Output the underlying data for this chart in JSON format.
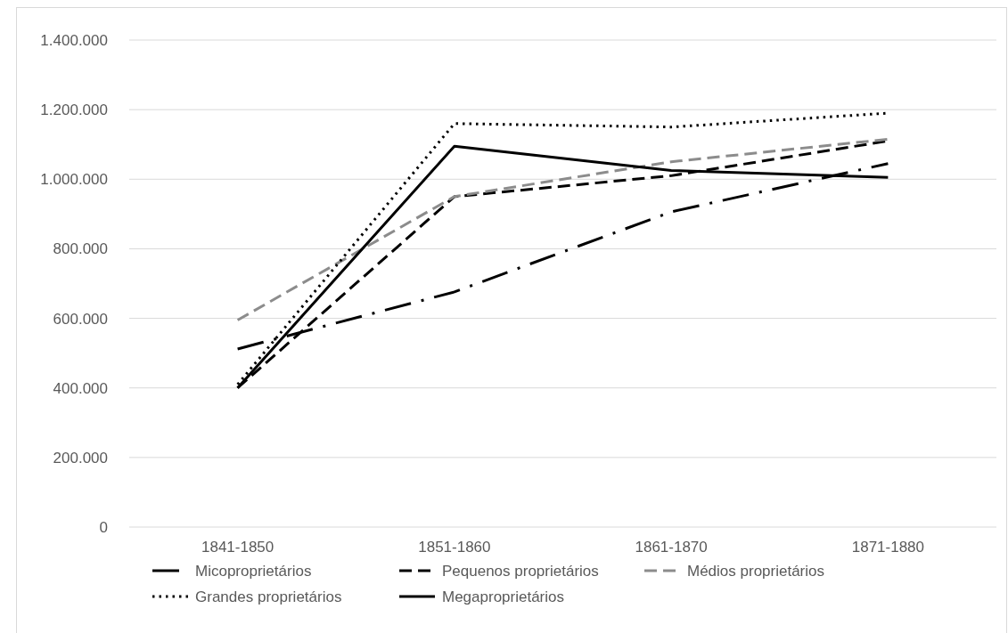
{
  "chart_data": {
    "type": "line",
    "categories": [
      "1841-1850",
      "1851-1860",
      "1861-1870",
      "1871-1880"
    ],
    "series": [
      {
        "name": "Micoproprietários",
        "color": "#000000",
        "line_style": "dashdot",
        "values": [
          512000,
          676000,
          906000,
          1045000
        ]
      },
      {
        "name": "Pequenos proprietários",
        "color": "#000000",
        "line_style": "dashed",
        "values": [
          400000,
          950000,
          1010000,
          1110000
        ]
      },
      {
        "name": "Médios proprietários",
        "color": "#8c8c8c",
        "line_style": "dashed",
        "values": [
          595000,
          950000,
          1050000,
          1115000
        ]
      },
      {
        "name": "Grandes proprietários",
        "color": "#000000",
        "line_style": "dotted",
        "values": [
          410000,
          1160000,
          1150000,
          1190000
        ]
      },
      {
        "name": "Megaproprietários",
        "color": "#000000",
        "line_style": "solid",
        "values": [
          400000,
          1095000,
          1025000,
          1005000
        ]
      }
    ],
    "ylim": [
      0,
      1400000
    ],
    "yticks": [
      {
        "value": 0,
        "label": "0"
      },
      {
        "value": 200000,
        "label": "200.000"
      },
      {
        "value": 400000,
        "label": "400.000"
      },
      {
        "value": 600000,
        "label": "600.000"
      },
      {
        "value": 800000,
        "label": "800.000"
      },
      {
        "value": 1000000,
        "label": "1.000.000"
      },
      {
        "value": 1200000,
        "label": "1.200.000"
      },
      {
        "value": 1400000,
        "label": "1.400.000"
      }
    ],
    "grid": "y",
    "legend": "bottom",
    "marker": "none"
  }
}
